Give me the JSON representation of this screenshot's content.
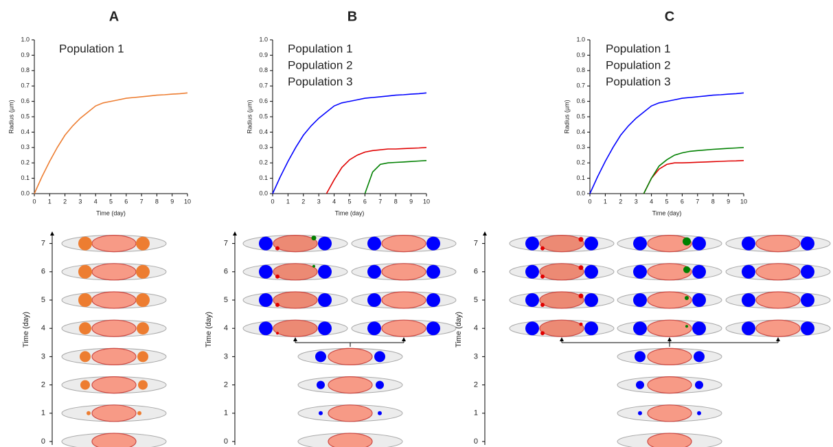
{
  "chart_data": [
    {
      "type": "line",
      "title": "A",
      "xlabel": "Time (day)",
      "ylabel": "Radius (µm)",
      "x": [
        0,
        0.5,
        1,
        1.5,
        2,
        2.5,
        3,
        3.5,
        4,
        4.5,
        5,
        5.5,
        6,
        6.5,
        7,
        7.5,
        8,
        8.5,
        9,
        9.5,
        10
      ],
      "xlim": [
        0,
        10
      ],
      "xticks": [
        0,
        1,
        2,
        3,
        4,
        5,
        6,
        7,
        8,
        9,
        10
      ],
      "ylim": [
        0,
        1
      ],
      "yticks": [
        {
          "value": 0,
          "label": "0.0"
        },
        0.1,
        0.2,
        0.3,
        0.4,
        0.5,
        0.6,
        0.7,
        0.8,
        0.9,
        {
          "value": 1,
          "label": "1.0"
        }
      ],
      "legend": "top-left",
      "series": [
        {
          "name": "Population 1",
          "color": "#ed7d31",
          "values": [
            0,
            0.11,
            0.21,
            0.3,
            0.38,
            0.44,
            0.49,
            0.53,
            0.57,
            0.59,
            0.6,
            0.61,
            0.62,
            0.625,
            0.63,
            0.635,
            0.64,
            0.643,
            0.647,
            0.65,
            0.655
          ]
        }
      ]
    },
    {
      "type": "line",
      "title": "B",
      "xlabel": "Time (day)",
      "ylabel": "Radius (µm)",
      "x": [
        0,
        0.5,
        1,
        1.5,
        2,
        2.5,
        3,
        3.5,
        4,
        4.5,
        5,
        5.5,
        6,
        6.5,
        7,
        7.5,
        8,
        8.5,
        9,
        9.5,
        10
      ],
      "xlim": [
        0,
        10
      ],
      "xticks": [
        0,
        1,
        2,
        3,
        4,
        5,
        6,
        7,
        8,
        9,
        10
      ],
      "ylim": [
        0,
        1
      ],
      "yticks": [
        {
          "value": 0,
          "label": "0.0"
        },
        0.1,
        0.2,
        0.3,
        0.4,
        0.5,
        0.6,
        0.7,
        0.8,
        0.9,
        {
          "value": 1,
          "label": "1.0"
        }
      ],
      "legend": "top-left",
      "series": [
        {
          "name": "Population 1",
          "color": "#0000ff",
          "values": [
            0,
            0.11,
            0.21,
            0.3,
            0.38,
            0.44,
            0.49,
            0.53,
            0.57,
            0.59,
            0.6,
            0.61,
            0.62,
            0.625,
            0.63,
            0.635,
            0.64,
            0.643,
            0.647,
            0.65,
            0.655
          ]
        },
        {
          "name": "Population 2",
          "color": "#e00000",
          "values": [
            null,
            null,
            null,
            null,
            null,
            null,
            null,
            0,
            0.09,
            0.17,
            0.22,
            0.25,
            0.27,
            0.28,
            0.285,
            0.29,
            0.29,
            0.293,
            0.295,
            0.297,
            0.3
          ]
        },
        {
          "name": "Population 3",
          "color": "#008000",
          "values": [
            null,
            null,
            null,
            null,
            null,
            null,
            null,
            null,
            null,
            null,
            null,
            null,
            0,
            0.14,
            0.19,
            0.2,
            0.203,
            0.206,
            0.209,
            0.212,
            0.215
          ]
        }
      ]
    },
    {
      "type": "line",
      "title": "C",
      "xlabel": "Time (day)",
      "ylabel": "Radius (µm)",
      "x": [
        0,
        0.5,
        1,
        1.5,
        2,
        2.5,
        3,
        3.5,
        4,
        4.5,
        5,
        5.5,
        6,
        6.5,
        7,
        7.5,
        8,
        8.5,
        9,
        9.5,
        10
      ],
      "xlim": [
        0,
        10
      ],
      "xticks": [
        0,
        1,
        2,
        3,
        4,
        5,
        6,
        7,
        8,
        9,
        10
      ],
      "ylim": [
        0,
        1
      ],
      "yticks": [
        {
          "value": 0,
          "label": "0.0"
        },
        0.1,
        0.2,
        0.3,
        0.4,
        0.5,
        0.6,
        0.7,
        0.8,
        0.9,
        {
          "value": 1,
          "label": "1.0"
        }
      ],
      "legend": "top-left",
      "series": [
        {
          "name": "Population 1",
          "color": "#0000ff",
          "values": [
            0,
            0.11,
            0.21,
            0.3,
            0.38,
            0.44,
            0.49,
            0.53,
            0.57,
            0.59,
            0.6,
            0.61,
            0.62,
            0.625,
            0.63,
            0.635,
            0.64,
            0.643,
            0.647,
            0.65,
            0.655
          ]
        },
        {
          "name": "Population 2",
          "color": "#e00000",
          "values": [
            null,
            null,
            null,
            null,
            null,
            null,
            null,
            0,
            0.1,
            0.16,
            0.19,
            0.2,
            0.2,
            0.202,
            0.204,
            0.206,
            0.208,
            0.21,
            0.212,
            0.213,
            0.215
          ]
        },
        {
          "name": "Population 3",
          "color": "#008000",
          "values": [
            null,
            null,
            null,
            null,
            null,
            null,
            null,
            0,
            0.1,
            0.18,
            0.22,
            0.25,
            0.265,
            0.275,
            0.28,
            0.284,
            0.288,
            0.291,
            0.294,
            0.297,
            0.3
          ]
        }
      ]
    }
  ],
  "schematics": [
    {
      "ylabel": "Time (day)",
      "yticks": [
        0,
        1,
        2,
        3,
        4,
        5,
        6,
        7
      ]
    },
    {
      "ylabel": "Time (day)",
      "yticks": [
        0,
        1,
        2,
        3,
        4,
        5,
        6,
        7
      ]
    },
    {
      "ylabel": "Time (day)",
      "yticks": [
        0,
        1,
        2,
        3,
        4,
        5,
        6,
        7
      ]
    }
  ]
}
